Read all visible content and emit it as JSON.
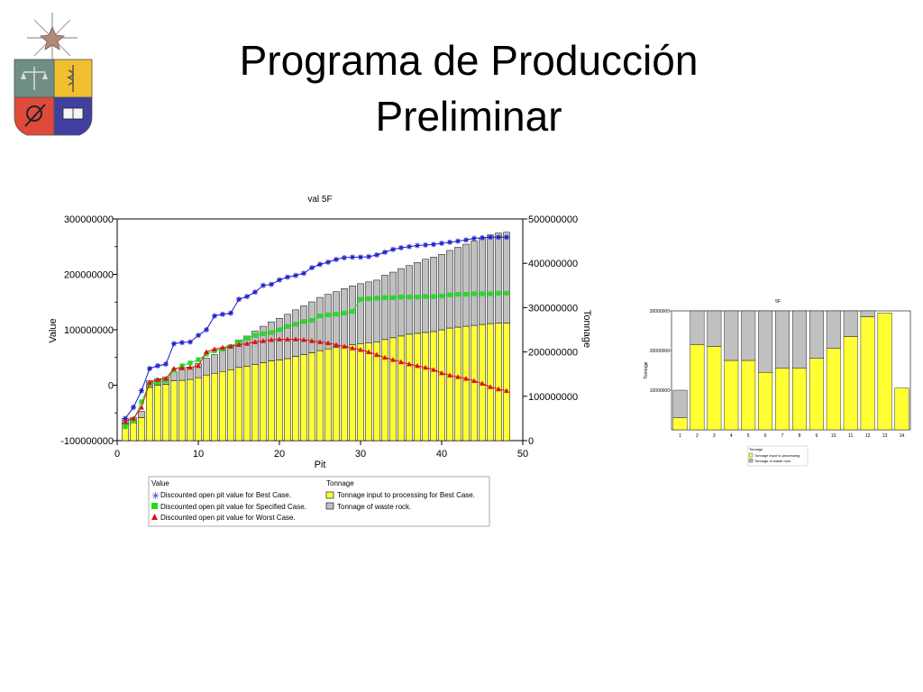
{
  "slide": {
    "title_line1": "Programa de Producción",
    "title_line2": "Preliminar"
  },
  "colors": {
    "ore": "#ffff33",
    "waste": "#c0c0c0",
    "best": "#1a1acc",
    "specified": "#22dd22",
    "worst": "#dd1111"
  },
  "chart_data": [
    {
      "type": "bar",
      "title": "val 5F",
      "xlabel": "Pit",
      "ylabel": "Value",
      "y2label": "Tonnage",
      "xlim": [
        0,
        50
      ],
      "ylim": [
        -100000000,
        300000000
      ],
      "y2lim": [
        0,
        500000000
      ],
      "x_ticks": [
        "0",
        "10",
        "20",
        "30",
        "40",
        "50"
      ],
      "y_ticks": [
        "300000000",
        "200000000",
        "100000000",
        "0",
        "-100000000"
      ],
      "y2_ticks": [
        "500000000",
        "400000000",
        "300000000",
        "200000000",
        "100000000",
        "0"
      ],
      "legend_value_title": "Value",
      "legend_tonnage_title": "Tonnage",
      "grid": false,
      "legend_position": "bottom",
      "x": [
        1,
        2,
        3,
        4,
        5,
        6,
        7,
        8,
        9,
        10,
        11,
        12,
        13,
        14,
        15,
        16,
        17,
        18,
        19,
        20,
        21,
        22,
        23,
        24,
        25,
        26,
        27,
        28,
        29,
        30,
        31,
        32,
        33,
        34,
        35,
        36,
        37,
        38,
        39,
        40,
        41,
        42,
        43,
        44,
        45,
        46,
        47,
        48
      ],
      "bar_series": [
        {
          "name": "Tonnage input to processing for Best Case.",
          "color_key": "ore",
          "values": [
            38000000,
            40000000,
            52000000,
            120000000,
            125000000,
            127000000,
            135000000,
            136000000,
            138000000,
            142000000,
            148000000,
            152000000,
            156000000,
            160000000,
            165000000,
            168000000,
            172000000,
            176000000,
            180000000,
            182000000,
            185000000,
            190000000,
            194000000,
            198000000,
            203000000,
            207000000,
            210000000,
            213000000,
            216000000,
            218000000,
            220000000,
            222000000,
            228000000,
            232000000,
            236000000,
            240000000,
            242000000,
            244000000,
            246000000,
            250000000,
            254000000,
            256000000,
            258000000,
            260000000,
            262000000,
            264000000,
            265000000,
            265000000
          ]
        },
        {
          "name": "Tonnage of waste rock.",
          "color_key": "waste",
          "values": [
            12000000,
            12000000,
            14000000,
            15000000,
            15000000,
            16000000,
            20000000,
            25000000,
            28000000,
            32000000,
            38000000,
            42000000,
            50000000,
            55000000,
            62000000,
            68000000,
            75000000,
            82000000,
            88000000,
            94000000,
            100000000,
            105000000,
            110000000,
            115000000,
            120000000,
            123000000,
            126000000,
            130000000,
            133000000,
            136000000,
            138000000,
            140000000,
            145000000,
            148000000,
            152000000,
            155000000,
            160000000,
            165000000,
            168000000,
            170000000,
            175000000,
            180000000,
            185000000,
            190000000,
            195000000,
            200000000,
            203000000,
            205000000
          ]
        }
      ],
      "line_series": [
        {
          "name": "Discounted open pit value for Best Case.",
          "color_key": "best",
          "marker": "asterisk",
          "values": [
            -60000000,
            -40000000,
            -10000000,
            30000000,
            35000000,
            38000000,
            75000000,
            77000000,
            78000000,
            90000000,
            100000000,
            125000000,
            128000000,
            130000000,
            155000000,
            160000000,
            168000000,
            180000000,
            182000000,
            190000000,
            195000000,
            198000000,
            202000000,
            212000000,
            218000000,
            222000000,
            227000000,
            230000000,
            231000000,
            231000000,
            232000000,
            235000000,
            240000000,
            245000000,
            248000000,
            250000000,
            252000000,
            253000000,
            254000000,
            256000000,
            258000000,
            260000000,
            262000000,
            265000000,
            266000000,
            267000000,
            267000000,
            267000000
          ]
        },
        {
          "name": "Discounted open pit value for Specified Case.",
          "color_key": "specified",
          "marker": "square",
          "values": [
            -75000000,
            -65000000,
            -30000000,
            2000000,
            5000000,
            8000000,
            27000000,
            35000000,
            40000000,
            46000000,
            56000000,
            62000000,
            65000000,
            70000000,
            78000000,
            85000000,
            90000000,
            93000000,
            95000000,
            100000000,
            106000000,
            110000000,
            115000000,
            117000000,
            125000000,
            127000000,
            128000000,
            130000000,
            133000000,
            155000000,
            156000000,
            157000000,
            158000000,
            158000000,
            159000000,
            159000000,
            159000000,
            160000000,
            160000000,
            161000000,
            163000000,
            164000000,
            164000000,
            165000000,
            165000000,
            165000000,
            166000000,
            166000000
          ]
        },
        {
          "name": "Discounted open pit value for Worst Case.",
          "color_key": "worst",
          "marker": "triangle",
          "values": [
            -65000000,
            -60000000,
            -40000000,
            5000000,
            10000000,
            12000000,
            30000000,
            31000000,
            32000000,
            35000000,
            60000000,
            65000000,
            68000000,
            70000000,
            73000000,
            75000000,
            78000000,
            80000000,
            82000000,
            83000000,
            83000000,
            83000000,
            82000000,
            80000000,
            78000000,
            76000000,
            73000000,
            70000000,
            67000000,
            64000000,
            60000000,
            55000000,
            50000000,
            46000000,
            42000000,
            38000000,
            35000000,
            32000000,
            28000000,
            22000000,
            18000000,
            15000000,
            12000000,
            8000000,
            3000000,
            -3000000,
            -7000000,
            -10000000
          ]
        }
      ]
    },
    {
      "type": "bar",
      "title": "5F",
      "ylabel": "Tonnage",
      "xlabel": "",
      "ylim": [
        0,
        30000000
      ],
      "y_ticks": [
        "30000000",
        "20000000",
        "10000000"
      ],
      "categories": [
        "1",
        "2",
        "3",
        "4",
        "5",
        "6",
        "7",
        "8",
        "9",
        "10",
        "11",
        "12",
        "13",
        "14"
      ],
      "legend_title": "Tonnage",
      "legend_position": "bottom",
      "series": [
        {
          "name": "Tonnage input to processing",
          "color_key": "ore",
          "values": [
            3000000,
            21500000,
            21000000,
            17500000,
            17500000,
            14500000,
            15500000,
            15500000,
            18000000,
            20500000,
            23500000,
            28500000,
            29500000,
            10500000
          ]
        },
        {
          "name": "Tonnage of waste rock",
          "color_key": "waste",
          "values": [
            7000000,
            8500000,
            9000000,
            12500000,
            12500000,
            15500000,
            14500000,
            14500000,
            12000000,
            9500000,
            6500000,
            1500000,
            0,
            0
          ]
        }
      ]
    }
  ]
}
